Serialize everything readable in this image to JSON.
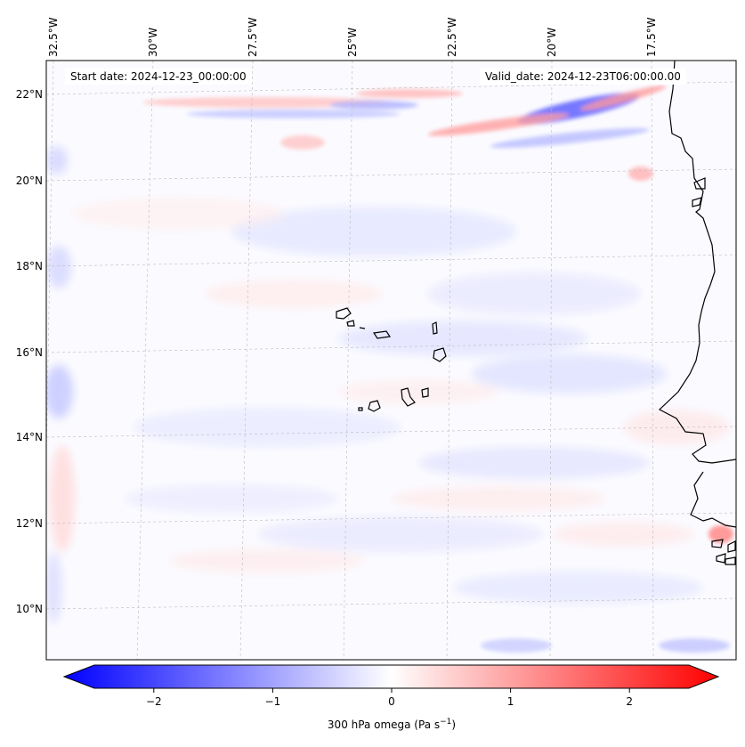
{
  "header": {
    "start_date": "Start date: 2024-12-23_00:00:00",
    "valid_date": "Valid_date: 2024-12-23T06:00:00.00"
  },
  "axes": {
    "lon_labels": [
      "32.5°W",
      "30°W",
      "27.5°W",
      "25°W",
      "22.5°W",
      "20°W",
      "17.5°W"
    ],
    "lat_labels": [
      "22°N",
      "20°N",
      "18°N",
      "16°N",
      "14°N",
      "12°N",
      "10°N"
    ]
  },
  "colorbar": {
    "label_main": "300 hPa omega (Pa s",
    "label_exp": "−1",
    "label_close": ")",
    "ticks": [
      "−2",
      "−1",
      "0",
      "1",
      "2"
    ],
    "tick_values": [
      -2,
      -1,
      0,
      1,
      2
    ],
    "range": [
      -2.75,
      2.75
    ],
    "cmap": "bwr",
    "colors": {
      "low": "#0000ff",
      "mid": "#ffffff",
      "high": "#ff0000"
    }
  },
  "map": {
    "field": "300 hPa omega",
    "coastline_color": "#000000",
    "gridline_color": "#bbbbbb"
  }
}
